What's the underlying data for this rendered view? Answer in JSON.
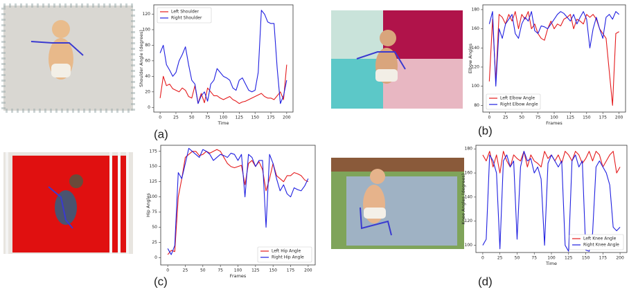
{
  "chart_data": [
    {
      "type": "line",
      "panel_label": "(a)",
      "xlabel": "Time",
      "ylabel": "Shoulder Angle (degrees)",
      "legend": "upper-left",
      "x": [
        0,
        5,
        10,
        15,
        20,
        25,
        30,
        35,
        40,
        45,
        50,
        55,
        60,
        65,
        70,
        75,
        80,
        85,
        90,
        95,
        100,
        105,
        110,
        115,
        120,
        125,
        130,
        135,
        140,
        145,
        150,
        155,
        160,
        165,
        170,
        175,
        180,
        185,
        190,
        195,
        200
      ],
      "series": [
        {
          "name": "Left Shoulder",
          "color": "#e41a1c",
          "values": [
            12,
            40,
            28,
            30,
            24,
            22,
            20,
            25,
            22,
            14,
            12,
            28,
            5,
            18,
            6,
            25,
            20,
            15,
            15,
            12,
            10,
            12,
            14,
            10,
            8,
            5,
            7,
            8,
            10,
            12,
            14,
            16,
            18,
            14,
            12,
            12,
            10,
            15,
            20,
            10,
            55
          ]
        },
        {
          "name": "Right Shoulder",
          "color": "#1f1fe0",
          "values": [
            70,
            80,
            55,
            48,
            40,
            45,
            60,
            68,
            78,
            55,
            35,
            30,
            5,
            15,
            20,
            8,
            30,
            35,
            50,
            45,
            40,
            38,
            35,
            25,
            22,
            35,
            38,
            30,
            22,
            20,
            22,
            45,
            125,
            120,
            110,
            108,
            108,
            50,
            5,
            15,
            35
          ]
        }
      ],
      "xlim": [
        -10,
        210
      ],
      "ylim": [
        -6,
        132
      ],
      "xticks": [
        0,
        25,
        50,
        75,
        100,
        125,
        150,
        175,
        200
      ],
      "yticks": [
        0,
        20,
        40,
        60,
        80,
        100,
        120
      ]
    },
    {
      "type": "line",
      "panel_label": "(b)",
      "xlabel": "Frames",
      "ylabel": "Elbow Angles",
      "legend": "lower-left",
      "x": [
        0,
        5,
        10,
        15,
        20,
        25,
        30,
        35,
        40,
        45,
        50,
        55,
        60,
        65,
        70,
        75,
        80,
        85,
        90,
        95,
        100,
        105,
        110,
        115,
        120,
        125,
        130,
        135,
        140,
        145,
        150,
        155,
        160,
        165,
        170,
        175,
        180,
        185,
        190,
        195,
        200
      ],
      "series": [
        {
          "name": "Left Elbow Angle",
          "color": "#e41a1c",
          "values": [
            105,
            170,
            105,
            175,
            172,
            165,
            175,
            168,
            178,
            160,
            175,
            170,
            178,
            160,
            165,
            155,
            150,
            148,
            160,
            168,
            160,
            165,
            163,
            170,
            172,
            175,
            160,
            170,
            168,
            165,
            175,
            172,
            175,
            170,
            160,
            155,
            150,
            115,
            80,
            155,
            157
          ]
        },
        {
          "name": "Right Elbow Angle",
          "color": "#1f1fe0",
          "values": [
            165,
            178,
            100,
            160,
            150,
            165,
            170,
            175,
            155,
            150,
            165,
            172,
            168,
            178,
            158,
            155,
            163,
            162,
            160,
            165,
            170,
            175,
            178,
            176,
            172,
            168,
            175,
            165,
            172,
            178,
            170,
            140,
            160,
            172,
            160,
            150,
            172,
            175,
            170,
            178,
            175
          ]
        }
      ],
      "xlim": [
        -10,
        210
      ],
      "ylim": [
        73,
        185
      ],
      "xticks": [
        0,
        25,
        50,
        75,
        100,
        125,
        150,
        175,
        200
      ],
      "yticks": [
        80,
        100,
        120,
        140,
        160,
        180
      ]
    },
    {
      "type": "line",
      "panel_label": "(c)",
      "xlabel": "Frames",
      "ylabel": "Hip Angles",
      "legend": "lower-right",
      "x": [
        0,
        5,
        10,
        15,
        20,
        25,
        30,
        35,
        40,
        45,
        50,
        55,
        60,
        65,
        70,
        75,
        80,
        85,
        90,
        95,
        100,
        105,
        110,
        115,
        120,
        125,
        130,
        135,
        140,
        145,
        150,
        155,
        160,
        165,
        170,
        175,
        180,
        185,
        190,
        195,
        200
      ],
      "series": [
        {
          "name": "Left Hip Angle",
          "color": "#e41a1c",
          "values": [
            5,
            12,
            10,
            100,
            130,
            165,
            170,
            175,
            175,
            168,
            170,
            175,
            172,
            175,
            178,
            175,
            165,
            155,
            150,
            148,
            150,
            152,
            120,
            155,
            160,
            150,
            158,
            145,
            110,
            130,
            155,
            135,
            130,
            125,
            135,
            135,
            140,
            138,
            135,
            128,
            125
          ]
        },
        {
          "name": "Right Hip Angle",
          "color": "#1f1fe0",
          "values": [
            15,
            5,
            20,
            140,
            130,
            155,
            180,
            175,
            170,
            165,
            178,
            175,
            170,
            160,
            165,
            170,
            168,
            165,
            172,
            170,
            160,
            170,
            100,
            170,
            165,
            150,
            160,
            160,
            50,
            170,
            155,
            130,
            110,
            120,
            105,
            100,
            115,
            112,
            110,
            118,
            130
          ]
        }
      ],
      "xlim": [
        -10,
        210
      ],
      "ylim": [
        -12,
        185
      ],
      "xticks": [
        0,
        25,
        50,
        75,
        100,
        125,
        150,
        175,
        200
      ],
      "yticks": [
        0,
        25,
        50,
        75,
        100,
        125,
        150,
        175
      ]
    },
    {
      "type": "line",
      "panel_label": "(d)",
      "xlabel": "Time",
      "ylabel": "Knee Angles (degrees)",
      "legend": "lower-right",
      "x": [
        0,
        5,
        10,
        15,
        20,
        25,
        30,
        35,
        40,
        45,
        50,
        55,
        60,
        65,
        70,
        75,
        80,
        85,
        90,
        95,
        100,
        105,
        110,
        115,
        120,
        125,
        130,
        135,
        140,
        145,
        150,
        155,
        160,
        165,
        170,
        175,
        180,
        185,
        190,
        195,
        200
      ],
      "series": [
        {
          "name": "Left Knee Angle",
          "color": "#e41a1c",
          "values": [
            175,
            170,
            178,
            165,
            175,
            160,
            178,
            170,
            165,
            175,
            172,
            170,
            178,
            165,
            175,
            170,
            168,
            165,
            178,
            172,
            175,
            170,
            175,
            168,
            178,
            175,
            170,
            178,
            175,
            168,
            172,
            178,
            170,
            178,
            175,
            165,
            170,
            175,
            178,
            160,
            165
          ]
        },
        {
          "name": "Right Knee Angle",
          "color": "#1f1fe0",
          "values": [
            100,
            105,
            175,
            170,
            160,
            97,
            170,
            175,
            165,
            170,
            105,
            165,
            178,
            170,
            172,
            160,
            165,
            155,
            100,
            168,
            175,
            170,
            165,
            170,
            100,
            95,
            170,
            175,
            165,
            170,
            96,
            95,
            110,
            165,
            170,
            165,
            160,
            150,
            115,
            112,
            115
          ]
        }
      ],
      "xlim": [
        -10,
        210
      ],
      "ylim": [
        94,
        183
      ],
      "xticks": [
        0,
        25,
        50,
        75,
        100,
        125,
        150,
        175,
        200
      ],
      "yticks": [
        100,
        120,
        140,
        160,
        180
      ]
    }
  ]
}
